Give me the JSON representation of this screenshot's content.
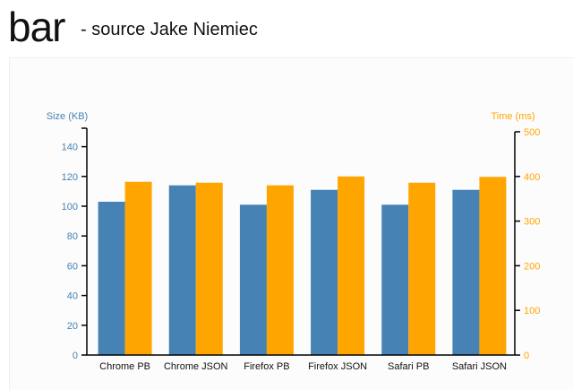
{
  "header": {
    "title": "bar",
    "subtitle": "- source Jake Niemiec"
  },
  "colors": {
    "size": "#4682b4",
    "time": "#ffa500",
    "axis": "#000000"
  },
  "chart_data": {
    "type": "bar",
    "categories": [
      "Chrome PB",
      "Chrome JSON",
      "Firefox PB",
      "Firefox JSON",
      "Safari PB",
      "Safari JSON"
    ],
    "series": [
      {
        "name": "Size (KB)",
        "axis": "left",
        "values": [
          103,
          114,
          101,
          111,
          101,
          111
        ]
      },
      {
        "name": "Time (ms)",
        "axis": "right",
        "values": [
          388,
          386,
          380,
          400,
          386,
          399
        ]
      }
    ],
    "ylabel": "Size (KB)",
    "y2label": "Time (ms)",
    "ylim": [
      0,
      150
    ],
    "y2lim": [
      0,
      500
    ],
    "yticks": [
      0,
      20,
      40,
      60,
      80,
      100,
      120,
      140
    ],
    "y2ticks": [
      0,
      100,
      200,
      300,
      400,
      500
    ],
    "grid": false
  }
}
